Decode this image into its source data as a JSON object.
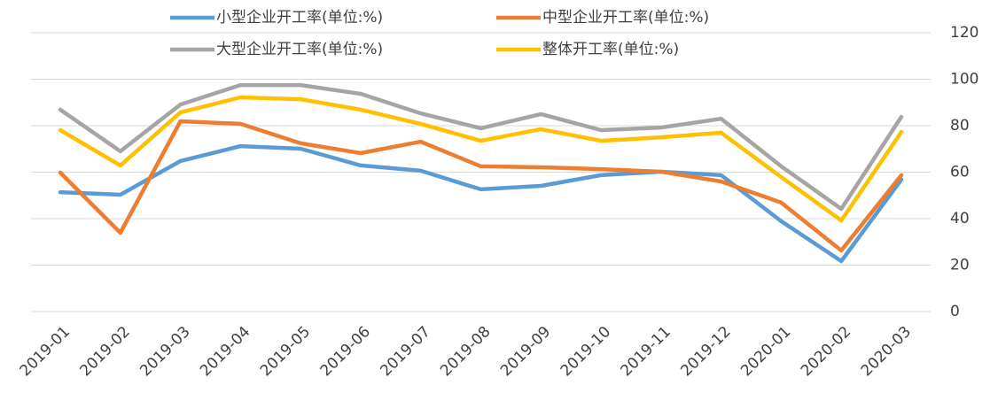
{
  "chart_data": {
    "type": "line",
    "categories": [
      "2019-01",
      "2019-02",
      "2019-03",
      "2019-04",
      "2019-05",
      "2019-06",
      "2019-07",
      "2019-08",
      "2019-09",
      "2019-10",
      "2019-11",
      "2019-12",
      "2020-01",
      "2020-02",
      "2020-03"
    ],
    "series": [
      {
        "name": "小型企业开工率(单位:%)",
        "color": "#5b9bd5",
        "values": [
          51.4,
          50.3,
          64.8,
          71.2,
          70.1,
          62.9,
          60.6,
          52.6,
          54.1,
          58.7,
          60.2,
          58.7,
          38.9,
          21.7,
          56.8
        ]
      },
      {
        "name": "中型企业开工率(单位:%)",
        "color": "#ed7d31",
        "values": [
          59.8,
          33.9,
          81.9,
          80.8,
          72.4,
          68.2,
          73.1,
          62.5,
          62.1,
          61.3,
          60.2,
          56.0,
          46.9,
          26.3,
          58.7
        ]
      },
      {
        "name": "大型企业开工率(单位:%)",
        "color": "#a5a5a5",
        "values": [
          86.9,
          69.0,
          89.1,
          97.5,
          97.5,
          93.7,
          85.3,
          78.9,
          85.0,
          78.1,
          79.2,
          83.0,
          62.5,
          44.2,
          83.8
        ]
      },
      {
        "name": "整体开工率(单位:%)",
        "color": "#ffc000",
        "values": [
          78.1,
          62.9,
          85.7,
          92.2,
          91.4,
          86.9,
          80.8,
          73.5,
          78.5,
          73.5,
          75.0,
          77.0,
          57.9,
          39.2,
          77.3
        ]
      }
    ],
    "ylim": [
      0,
      120
    ],
    "yticks": [
      0,
      20,
      40,
      60,
      80,
      100,
      120
    ],
    "grid": true
  }
}
